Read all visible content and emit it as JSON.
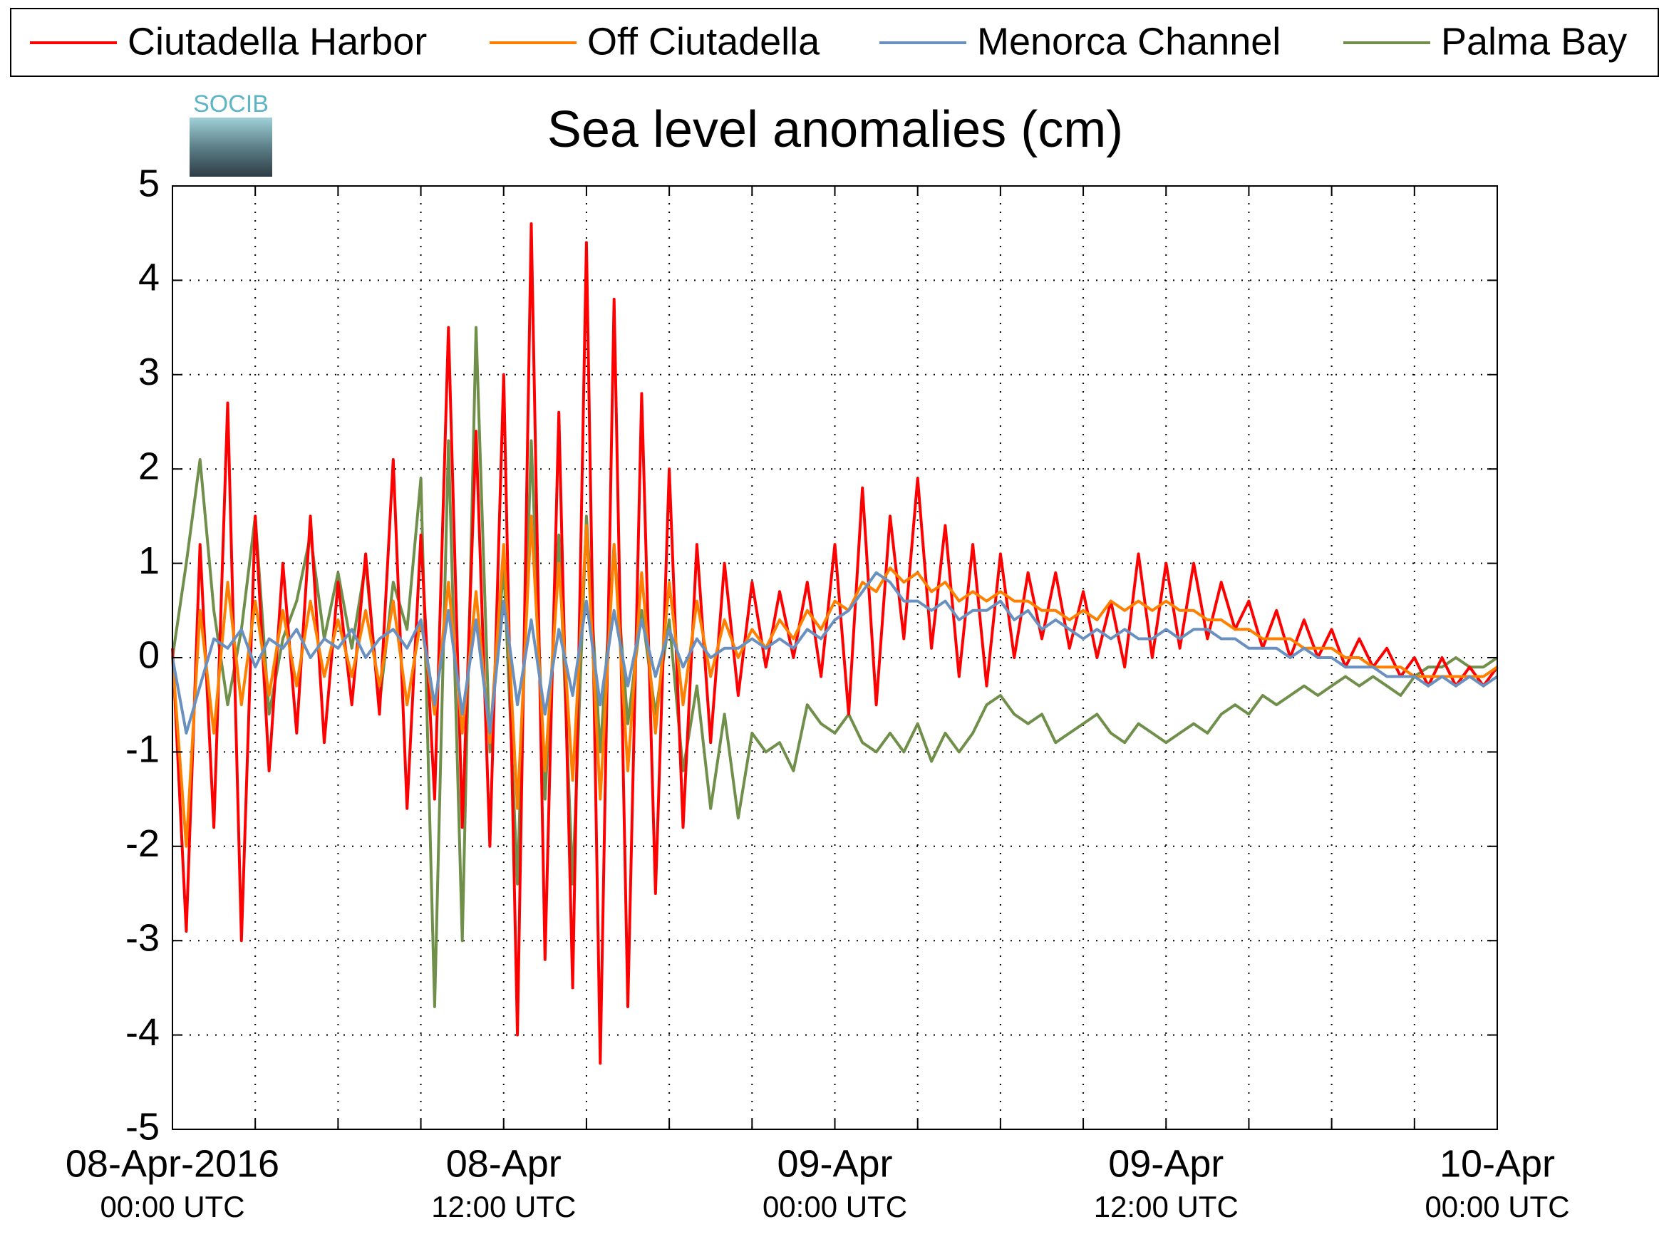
{
  "logo_text": "SOCIB",
  "chart_data": {
    "type": "line",
    "title": "Sea level anomalies (cm)",
    "legend": "top",
    "grid": true,
    "xlim": [
      "2016-04-08T00:00",
      "2016-04-10T00:00"
    ],
    "xticks": [
      {
        "value": "2016-04-08T00:00",
        "label": [
          "08-Apr-2016",
          "00:00 UTC"
        ]
      },
      {
        "value": "2016-04-08T03:00",
        "label": null
      },
      {
        "value": "2016-04-08T06:00",
        "label": null
      },
      {
        "value": "2016-04-08T09:00",
        "label": null
      },
      {
        "value": "2016-04-08T12:00",
        "label": [
          "08-Apr",
          "12:00 UTC"
        ]
      },
      {
        "value": "2016-04-08T15:00",
        "label": null
      },
      {
        "value": "2016-04-08T18:00",
        "label": null
      },
      {
        "value": "2016-04-08T21:00",
        "label": null
      },
      {
        "value": "2016-04-09T00:00",
        "label": [
          "09-Apr",
          "00:00 UTC"
        ]
      },
      {
        "value": "2016-04-09T03:00",
        "label": null
      },
      {
        "value": "2016-04-09T06:00",
        "label": null
      },
      {
        "value": "2016-04-09T09:00",
        "label": null
      },
      {
        "value": "2016-04-09T12:00",
        "label": [
          "09-Apr",
          "12:00 UTC"
        ]
      },
      {
        "value": "2016-04-09T15:00",
        "label": null
      },
      {
        "value": "2016-04-09T18:00",
        "label": null
      },
      {
        "value": "2016-04-09T21:00",
        "label": null
      },
      {
        "value": "2016-04-10T00:00",
        "label": [
          "10-Apr",
          "00:00 UTC"
        ]
      }
    ],
    "ylim": [
      -5,
      5
    ],
    "yticks": [
      -5,
      -4,
      -3,
      -2,
      -1,
      0,
      1,
      2,
      3,
      4,
      5
    ],
    "x": [
      "2016-04-08T00:00",
      "2016-04-08T00:30",
      "2016-04-08T01:00",
      "2016-04-08T01:30",
      "2016-04-08T02:00",
      "2016-04-08T02:30",
      "2016-04-08T03:00",
      "2016-04-08T03:30",
      "2016-04-08T04:00",
      "2016-04-08T04:30",
      "2016-04-08T05:00",
      "2016-04-08T05:30",
      "2016-04-08T06:00",
      "2016-04-08T06:30",
      "2016-04-08T07:00",
      "2016-04-08T07:30",
      "2016-04-08T08:00",
      "2016-04-08T08:30",
      "2016-04-08T09:00",
      "2016-04-08T09:30",
      "2016-04-08T10:00",
      "2016-04-08T10:30",
      "2016-04-08T11:00",
      "2016-04-08T11:30",
      "2016-04-08T12:00",
      "2016-04-08T12:30",
      "2016-04-08T13:00",
      "2016-04-08T13:30",
      "2016-04-08T14:00",
      "2016-04-08T14:30",
      "2016-04-08T15:00",
      "2016-04-08T15:30",
      "2016-04-08T16:00",
      "2016-04-08T16:30",
      "2016-04-08T17:00",
      "2016-04-08T17:30",
      "2016-04-08T18:00",
      "2016-04-08T18:30",
      "2016-04-08T19:00",
      "2016-04-08T19:30",
      "2016-04-08T20:00",
      "2016-04-08T20:30",
      "2016-04-08T21:00",
      "2016-04-08T21:30",
      "2016-04-08T22:00",
      "2016-04-08T22:30",
      "2016-04-08T23:00",
      "2016-04-08T23:30",
      "2016-04-09T00:00",
      "2016-04-09T00:30",
      "2016-04-09T01:00",
      "2016-04-09T01:30",
      "2016-04-09T02:00",
      "2016-04-09T02:30",
      "2016-04-09T03:00",
      "2016-04-09T03:30",
      "2016-04-09T04:00",
      "2016-04-09T04:30",
      "2016-04-09T05:00",
      "2016-04-09T05:30",
      "2016-04-09T06:00",
      "2016-04-09T06:30",
      "2016-04-09T07:00",
      "2016-04-09T07:30",
      "2016-04-09T08:00",
      "2016-04-09T08:30",
      "2016-04-09T09:00",
      "2016-04-09T09:30",
      "2016-04-09T10:00",
      "2016-04-09T10:30",
      "2016-04-09T11:00",
      "2016-04-09T11:30",
      "2016-04-09T12:00",
      "2016-04-09T12:30",
      "2016-04-09T13:00",
      "2016-04-09T13:30",
      "2016-04-09T14:00",
      "2016-04-09T14:30",
      "2016-04-09T15:00",
      "2016-04-09T15:30",
      "2016-04-09T16:00",
      "2016-04-09T16:30",
      "2016-04-09T17:00",
      "2016-04-09T17:30",
      "2016-04-09T18:00",
      "2016-04-09T18:30",
      "2016-04-09T19:00",
      "2016-04-09T19:30",
      "2016-04-09T20:00",
      "2016-04-09T20:30",
      "2016-04-09T21:00",
      "2016-04-09T21:30",
      "2016-04-09T22:00",
      "2016-04-09T22:30",
      "2016-04-09T23:00",
      "2016-04-09T23:30",
      "2016-04-10T00:00"
    ],
    "series": [
      {
        "name": "Ciutadella Harbor",
        "color": "#ff0000",
        "values": [
          0.1,
          -2.9,
          1.2,
          -1.8,
          2.7,
          -3.0,
          1.5,
          -1.2,
          1.0,
          -0.8,
          1.5,
          -0.9,
          0.8,
          -0.5,
          1.1,
          -0.6,
          2.1,
          -1.6,
          1.3,
          -1.5,
          3.5,
          -1.8,
          2.4,
          -2.0,
          3.0,
          -4.0,
          4.6,
          -3.2,
          2.6,
          -3.5,
          4.4,
          -4.3,
          3.8,
          -3.7,
          2.8,
          -2.5,
          2.0,
          -1.8,
          1.2,
          -0.9,
          1.0,
          -0.4,
          0.8,
          -0.1,
          0.7,
          0.0,
          0.8,
          -0.2,
          1.2,
          -0.6,
          1.8,
          -0.5,
          1.5,
          0.2,
          1.9,
          0.1,
          1.4,
          -0.2,
          1.2,
          -0.3,
          1.1,
          0.0,
          0.9,
          0.2,
          0.9,
          0.1,
          0.7,
          0.0,
          0.6,
          -0.1,
          1.1,
          0.0,
          1.0,
          0.1,
          1.0,
          0.2,
          0.8,
          0.3,
          0.6,
          0.1,
          0.5,
          0.0,
          0.4,
          0.0,
          0.3,
          -0.1,
          0.2,
          -0.1,
          0.1,
          -0.2,
          0.0,
          -0.3,
          0.0,
          -0.3,
          -0.1,
          -0.3,
          -0.1
        ]
      },
      {
        "name": "Off Ciutadella",
        "color": "#ff8000",
        "values": [
          0,
          -2.0,
          0.5,
          -0.8,
          0.8,
          -0.5,
          0.6,
          -0.4,
          0.5,
          -0.3,
          0.6,
          -0.2,
          0.4,
          -0.2,
          0.5,
          -0.3,
          0.6,
          -0.5,
          0.4,
          -0.6,
          0.8,
          -0.8,
          0.7,
          -0.9,
          1.2,
          -1.6,
          1.5,
          -1.2,
          1.0,
          -1.3,
          1.4,
          -1.5,
          1.2,
          -1.2,
          0.9,
          -0.8,
          0.8,
          -0.5,
          0.6,
          -0.2,
          0.4,
          0.0,
          0.3,
          0.1,
          0.4,
          0.2,
          0.5,
          0.3,
          0.6,
          0.5,
          0.8,
          0.7,
          0.95,
          0.8,
          0.9,
          0.7,
          0.8,
          0.6,
          0.7,
          0.6,
          0.7,
          0.6,
          0.6,
          0.5,
          0.5,
          0.4,
          0.5,
          0.4,
          0.6,
          0.5,
          0.6,
          0.5,
          0.6,
          0.5,
          0.5,
          0.4,
          0.4,
          0.3,
          0.3,
          0.2,
          0.2,
          0.2,
          0.1,
          0.1,
          0.1,
          0.0,
          0.0,
          -0.1,
          -0.1,
          -0.1,
          -0.2,
          -0.2,
          -0.2,
          -0.2,
          -0.2,
          -0.2,
          -0.1
        ]
      },
      {
        "name": "Menorca Channel",
        "color": "#6a90c0",
        "values": [
          0,
          -0.8,
          -0.3,
          0.2,
          0.1,
          0.3,
          -0.1,
          0.2,
          0.1,
          0.3,
          0.0,
          0.2,
          0.1,
          0.3,
          0.0,
          0.2,
          0.3,
          0.1,
          0.4,
          -0.5,
          0.5,
          -0.6,
          0.4,
          -0.8,
          0.6,
          -0.5,
          0.4,
          -0.6,
          0.3,
          -0.4,
          0.6,
          -0.5,
          0.5,
          -0.3,
          0.4,
          -0.2,
          0.3,
          -0.1,
          0.2,
          0.0,
          0.1,
          0.1,
          0.2,
          0.1,
          0.2,
          0.1,
          0.3,
          0.2,
          0.4,
          0.5,
          0.7,
          0.9,
          0.8,
          0.6,
          0.6,
          0.5,
          0.6,
          0.4,
          0.5,
          0.5,
          0.6,
          0.4,
          0.5,
          0.3,
          0.4,
          0.3,
          0.2,
          0.3,
          0.2,
          0.3,
          0.2,
          0.2,
          0.3,
          0.2,
          0.3,
          0.3,
          0.2,
          0.2,
          0.1,
          0.1,
          0.1,
          0.0,
          0.1,
          0.0,
          0.0,
          -0.1,
          -0.1,
          -0.1,
          -0.2,
          -0.2,
          -0.2,
          -0.3,
          -0.2,
          -0.3,
          -0.2,
          -0.3,
          -0.2
        ]
      },
      {
        "name": "Palma Bay",
        "color": "#6f8f4a",
        "values": [
          0,
          1.0,
          2.1,
          0.5,
          -0.5,
          0.3,
          1.5,
          -0.6,
          0.2,
          0.6,
          1.3,
          0.2,
          0.9,
          0.1,
          1.0,
          -0.5,
          0.8,
          0.3,
          1.9,
          -3.7,
          2.3,
          -3.0,
          3.5,
          -1.0,
          1.0,
          -2.4,
          2.3,
          -1.5,
          1.3,
          -2.4,
          1.5,
          -1.0,
          1.2,
          -0.7,
          0.5,
          -0.6,
          0.4,
          -1.2,
          -0.3,
          -1.6,
          -0.6,
          -1.7,
          -0.8,
          -1.0,
          -0.9,
          -1.2,
          -0.5,
          -0.7,
          -0.8,
          -0.6,
          -0.9,
          -1.0,
          -0.8,
          -1.0,
          -0.7,
          -1.1,
          -0.8,
          -1.0,
          -0.8,
          -0.5,
          -0.4,
          -0.6,
          -0.7,
          -0.6,
          -0.9,
          -0.8,
          -0.7,
          -0.6,
          -0.8,
          -0.9,
          -0.7,
          -0.8,
          -0.9,
          -0.8,
          -0.7,
          -0.8,
          -0.6,
          -0.5,
          -0.6,
          -0.4,
          -0.5,
          -0.4,
          -0.3,
          -0.4,
          -0.3,
          -0.2,
          -0.3,
          -0.2,
          -0.3,
          -0.4,
          -0.2,
          -0.1,
          -0.1,
          0.0,
          -0.1,
          -0.1,
          0.0
        ]
      }
    ]
  }
}
